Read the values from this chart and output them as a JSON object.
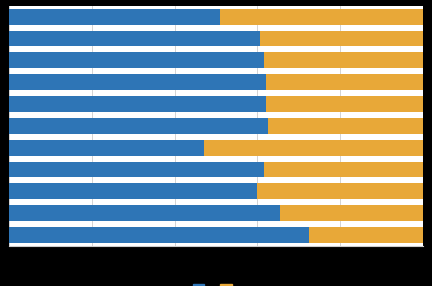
{
  "blue_values": [
    51.0,
    60.5,
    61.5,
    62.0,
    62.0,
    62.5,
    47.0,
    61.5,
    60.0,
    65.5,
    72.5
  ],
  "orange_values": [
    49.0,
    39.5,
    38.5,
    38.0,
    38.0,
    37.5,
    53.0,
    38.5,
    40.0,
    34.5,
    27.5
  ],
  "blue_color": "#2e75b6",
  "orange_color": "#e8a838",
  "legend_labels": [
    "",
    ""
  ],
  "fig_bg_color": "#000000",
  "plot_bg_color": "#ffffff",
  "xlim": [
    0,
    100
  ],
  "bar_height": 0.72,
  "figsize": [
    4.32,
    2.86
  ],
  "dpi": 100,
  "grid_color": "#cccccc",
  "n_bars": 11
}
